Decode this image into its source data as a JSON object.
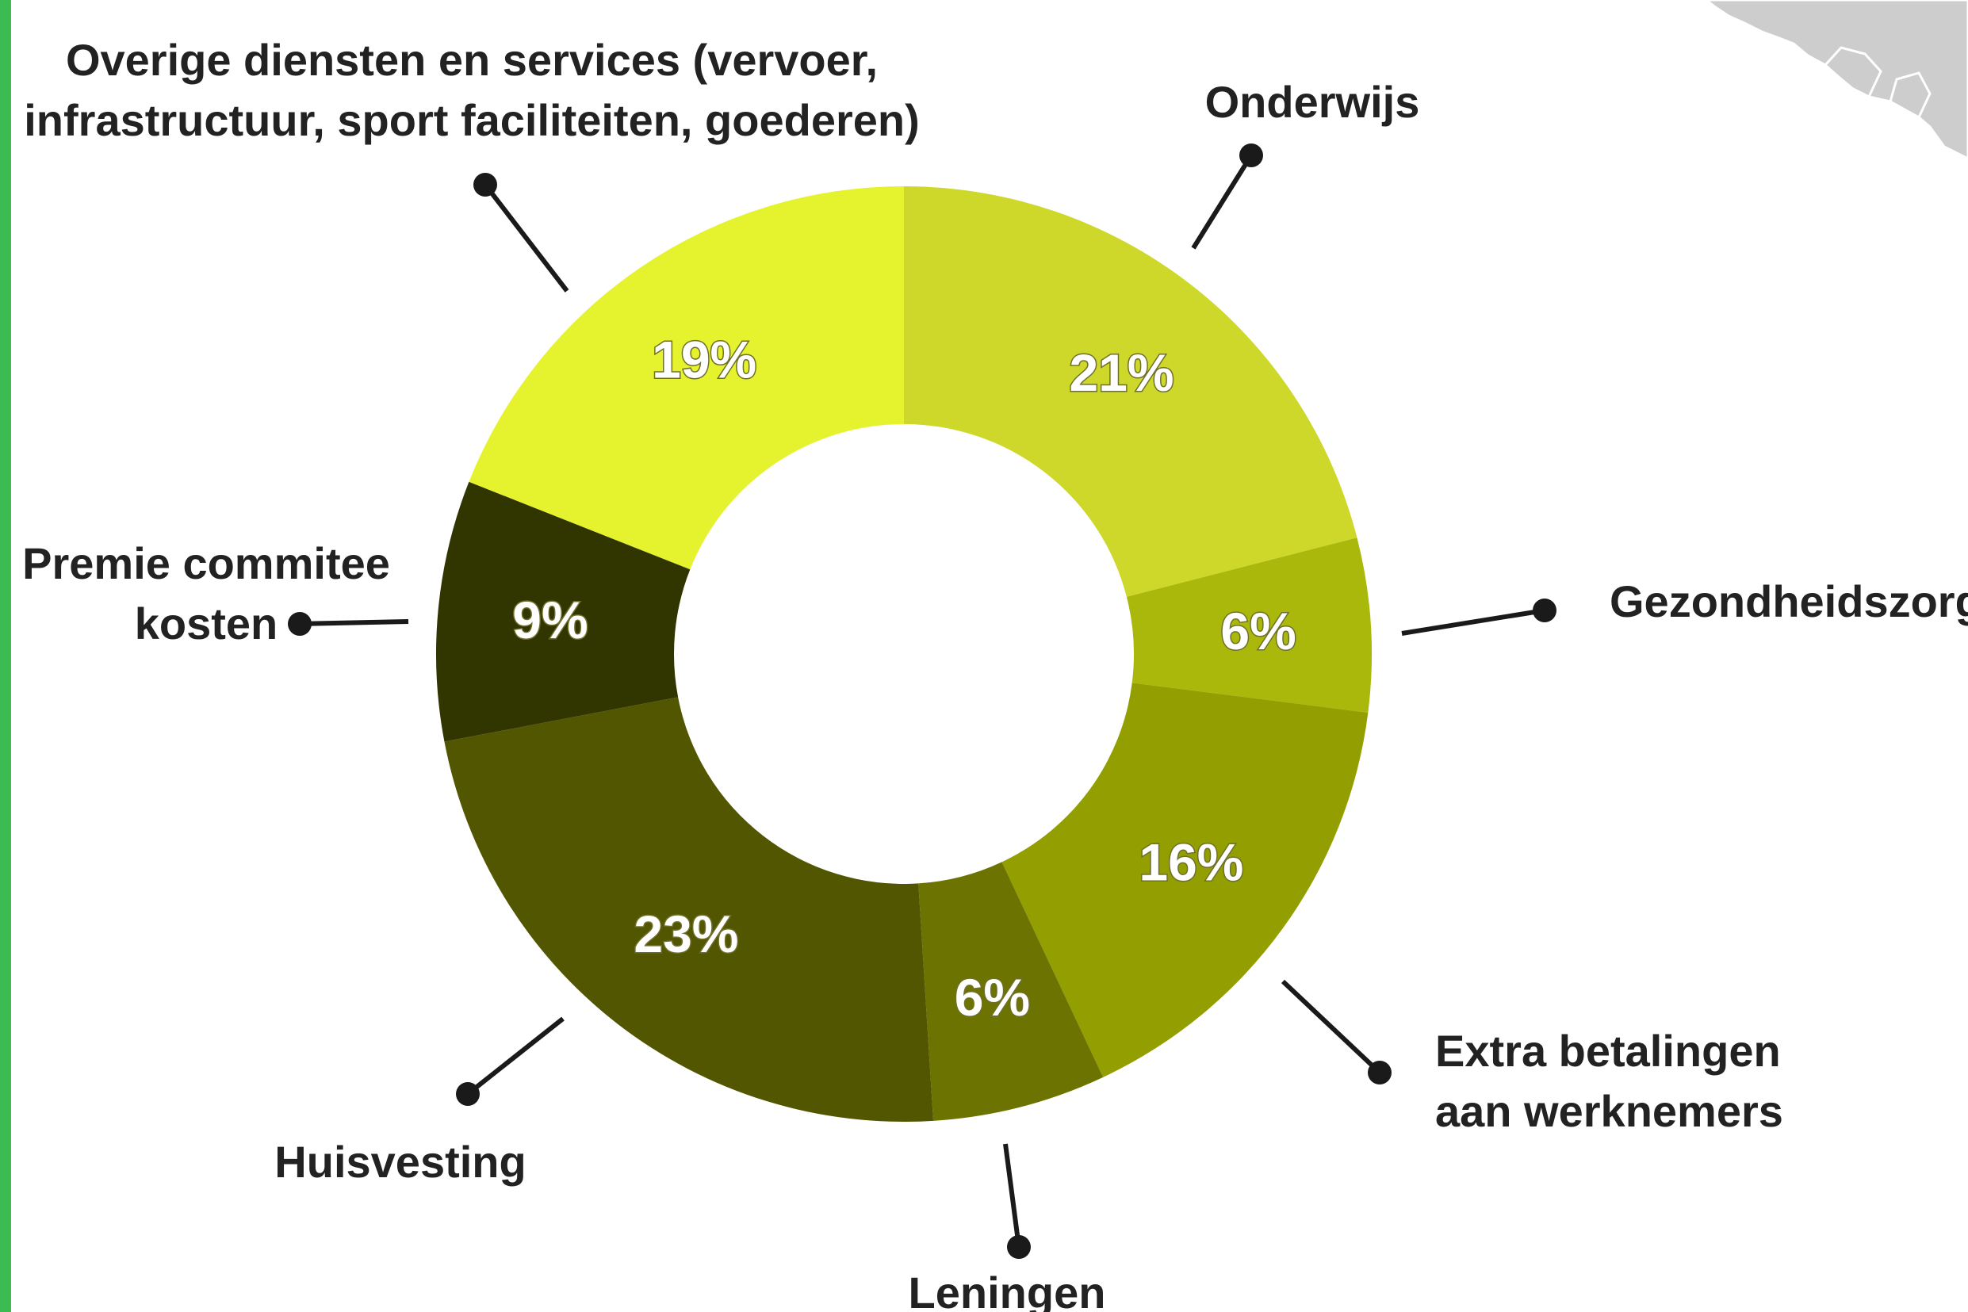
{
  "colors": {
    "edge_stripe": "#3cbb52",
    "map": "#cdcdcd",
    "leader": "#1a1a1a",
    "label_text": "#222222",
    "pct_text": "#ffffff"
  },
  "chart_data": {
    "type": "pie",
    "donut": true,
    "categories": [
      "Onderwijs",
      "Gezondheidszorg",
      "Extra betalingen aan werknemers",
      "Leningen",
      "Huisvesting",
      "Premie commitee kosten",
      "Overige diensten en services (vervoer, infrastructuur, sport faciliteiten, goederen)"
    ],
    "values": [
      21,
      6,
      16,
      6,
      23,
      9,
      19
    ],
    "value_labels": [
      "21%",
      "6%",
      "16%",
      "6%",
      "23%",
      "9%",
      "19%"
    ],
    "category_lines": [
      [
        "Onderwijs"
      ],
      [
        "Gezondheidszorg"
      ],
      [
        "Extra betalingen",
        "aan werknemers"
      ],
      [
        "Leningen"
      ],
      [
        "Huisvesting"
      ],
      [
        "Premie commitee",
        "kosten"
      ],
      [
        "Overige diensten en services (vervoer,",
        "infrastructuur, sport faciliteiten, goederen)"
      ]
    ],
    "colors": [
      "#cdd82a",
      "#a9b80a",
      "#939e00",
      "#6c7300",
      "#525600",
      "#313500",
      "#e5f22e"
    ],
    "start": "top",
    "direction": "clockwise",
    "legend": "none"
  }
}
